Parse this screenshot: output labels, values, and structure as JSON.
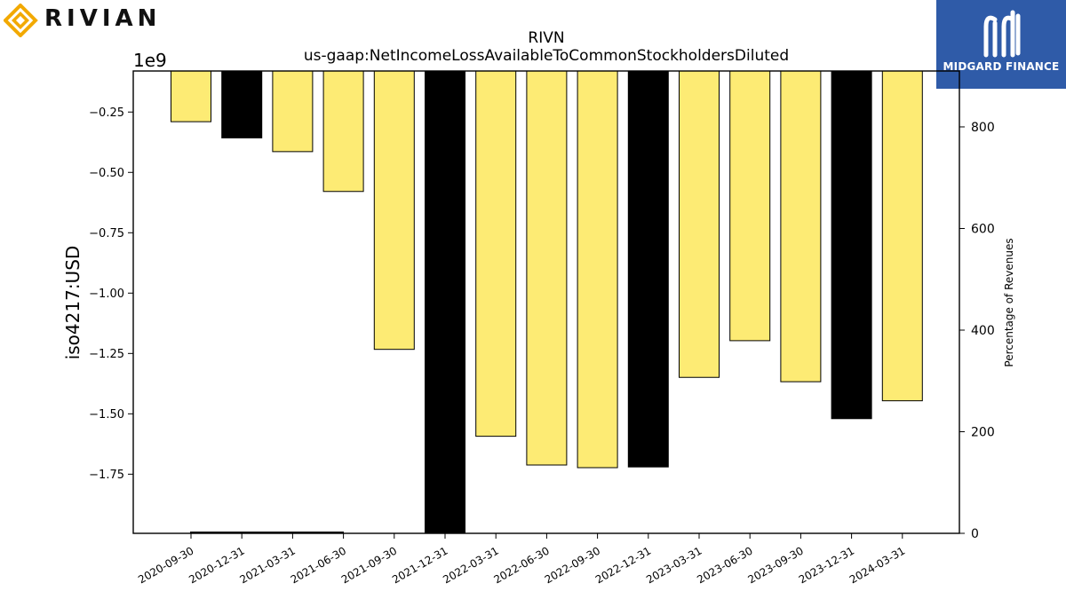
{
  "brand": {
    "name": "RIVIAN",
    "accent": "#f2a900"
  },
  "sponsor": {
    "name": "MIDGARD FINANCE",
    "bg": "#2f5ba8"
  },
  "chart_data": {
    "type": "bar",
    "title": "RIVN",
    "subtitle": "us-gaap:NetIncomeLossAvailableToCommonStockholdersDiluted",
    "ylabel": "iso4217:USD",
    "y_multiplier": "1e9",
    "y2label": "Percentage of Revenues",
    "ylim": [
      -1.995,
      -0.08
    ],
    "y_ticks": [
      -0.25,
      -0.5,
      -0.75,
      -1.0,
      -1.25,
      -1.5,
      -1.75
    ],
    "y_tick_labels": [
      "−0.25",
      "−0.50",
      "−0.75",
      "−1.00",
      "−1.25",
      "−1.50",
      "−1.75"
    ],
    "y2lim": [
      0,
      910
    ],
    "y2_ticks": [
      0,
      200,
      400,
      600,
      800
    ],
    "y2_tick_labels": [
      "0",
      "200",
      "400",
      "600",
      "800"
    ],
    "categories": [
      "2020-09-30",
      "2020-12-31",
      "2021-03-31",
      "2021-06-30",
      "2021-09-30",
      "2021-12-31",
      "2022-03-31",
      "2022-06-30",
      "2022-09-30",
      "2022-12-31",
      "2023-03-31",
      "2023-06-30",
      "2023-09-30",
      "2023-12-31",
      "2024-03-31"
    ],
    "values": [
      -0.29,
      -0.357,
      -0.414,
      -0.579,
      -1.233,
      -2.0,
      -1.593,
      -1.712,
      -1.723,
      -1.72,
      -1.349,
      -1.197,
      -1.367,
      -1.52,
      -1.446
    ],
    "bar_colors": [
      "#fdeb74",
      "#000000",
      "#fdeb74",
      "#fdeb74",
      "#fdeb74",
      "#000000",
      "#fdeb74",
      "#fdeb74",
      "#fdeb74",
      "#000000",
      "#fdeb74",
      "#fdeb74",
      "#fdeb74",
      "#000000",
      "#fdeb74"
    ],
    "pct_of_revenue": [
      null,
      null,
      null,
      null,
      null,
      null,
      null,
      null,
      null,
      null,
      null,
      null,
      null,
      null,
      null
    ],
    "grid": false,
    "legend": "none"
  }
}
